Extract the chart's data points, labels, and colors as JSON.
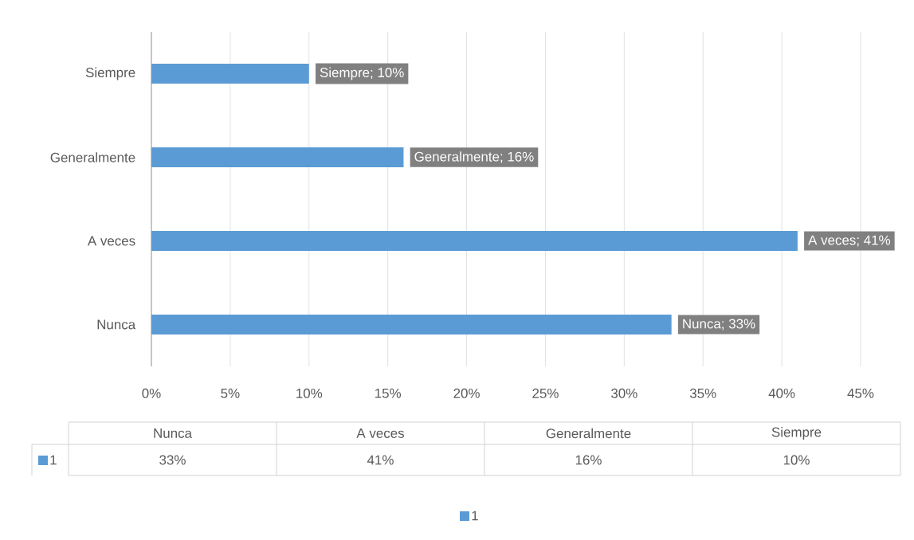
{
  "chart_data": {
    "type": "bar",
    "orientation": "horizontal",
    "categories": [
      "Siempre",
      "Generalmente",
      "A veces",
      "Nunca"
    ],
    "series": [
      {
        "name": "1",
        "color": "#5b9bd5",
        "values": [
          10,
          16,
          41,
          33
        ],
        "value_labels": [
          "Siempre; 10%",
          "Generalmente; 16%",
          "A veces; 41%",
          "Nunca; 33%"
        ]
      }
    ],
    "xlim": [
      0,
      45
    ],
    "xticks": [
      {
        "value": 0,
        "label": "0%"
      },
      {
        "value": 5,
        "label": "5%"
      },
      {
        "value": 10,
        "label": "10%"
      },
      {
        "value": 15,
        "label": "15%"
      },
      {
        "value": 20,
        "label": "20%"
      },
      {
        "value": 25,
        "label": "25%"
      },
      {
        "value": 30,
        "label": "30%"
      },
      {
        "value": 35,
        "label": "35%"
      },
      {
        "value": 40,
        "label": "40%"
      },
      {
        "value": 45,
        "label": "45%"
      }
    ],
    "grid": "x",
    "legend": "bottom",
    "data_labels": true,
    "annotations": [
      "33%",
      "41%",
      "16%",
      "10%"
    ]
  }
}
